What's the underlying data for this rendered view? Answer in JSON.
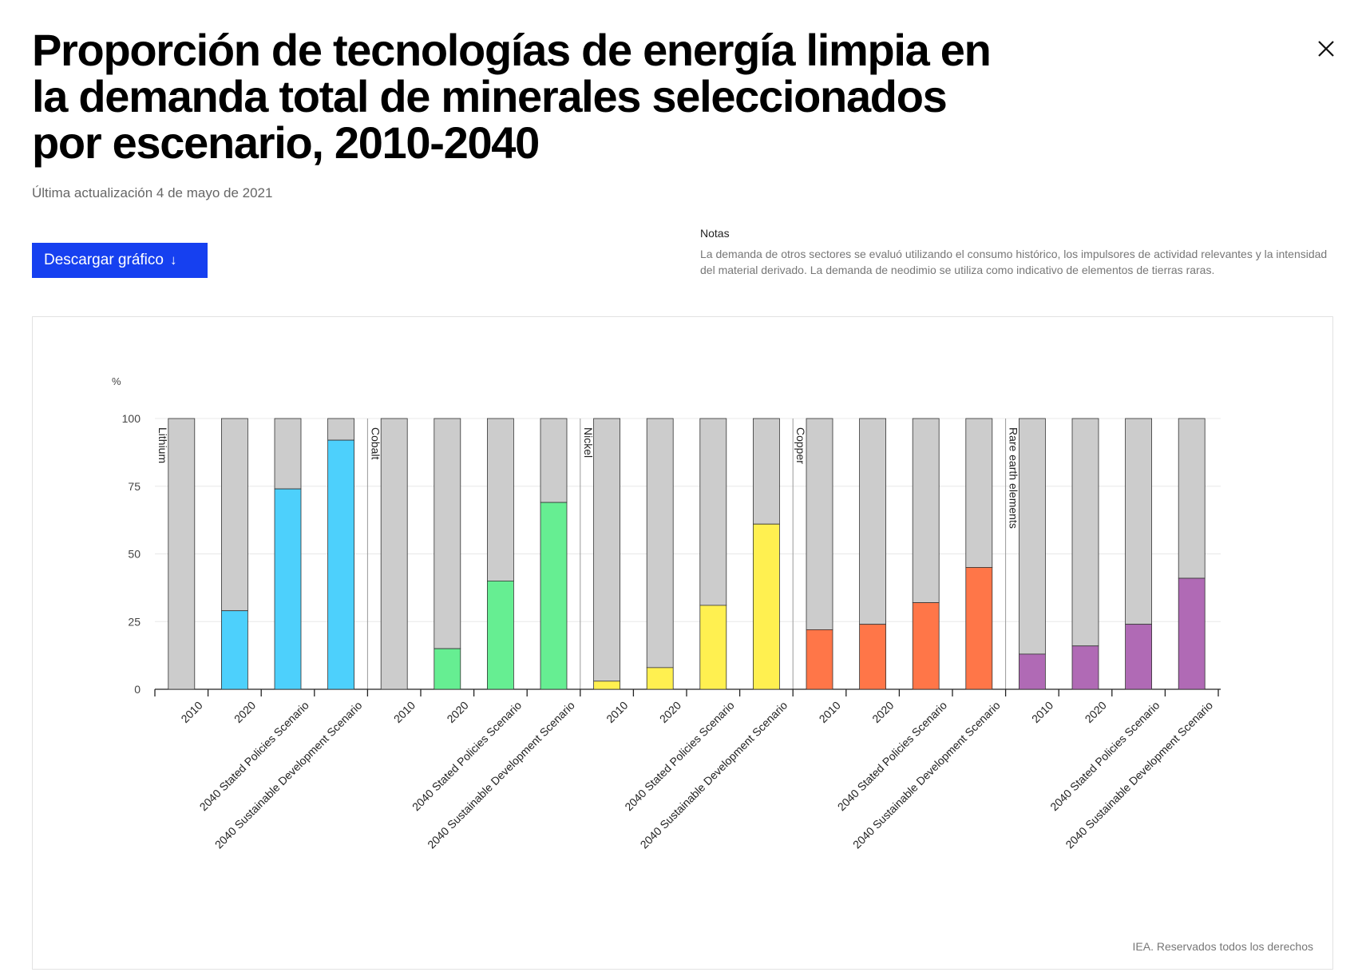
{
  "header": {
    "title": "Proporción de tecnologías de energía limpia en la demanda total de minerales seleccionados por escenario, 2010-2040",
    "updated": "Última actualización 4 de mayo de 2021",
    "download_label": "Descargar gráfico",
    "download_arrow": "↓",
    "close_icon": "close-icon"
  },
  "notes": {
    "title": "Notas",
    "text": "La demanda de otros sectores se evaluó utilizando el consumo histórico, los impulsores de actividad relevantes y la intensidad del material derivado. La demanda de neodimio se utiliza como indicativo de elementos de tierras raras."
  },
  "footer": {
    "copyright": "IEA. Reservados todos los derechos"
  },
  "chart_data": {
    "type": "bar",
    "stacked_to": 100,
    "title": "Proporción de tecnologías de energía limpia en la demanda total de minerales seleccionados por escenario, 2010-2040",
    "ylabel": "%",
    "xlabel": "",
    "ylim": [
      0,
      100
    ],
    "yticks": [
      0,
      25,
      50,
      75,
      100
    ],
    "grid": true,
    "categories": [
      "2010",
      "2020",
      "2040 Stated Policies Scenario",
      "2040 Sustainable Development Scenario"
    ],
    "remainder_color": "#cccccc",
    "groups": [
      {
        "name": "Lithium",
        "color": "#4dd0fc",
        "values": [
          0,
          29,
          74,
          92
        ]
      },
      {
        "name": "Cobalt",
        "color": "#66ee92",
        "values": [
          0,
          15,
          40,
          69
        ]
      },
      {
        "name": "Nickel",
        "color": "#fff050",
        "values": [
          3,
          8,
          31,
          61
        ]
      },
      {
        "name": "Copper",
        "color": "#ff7648",
        "values": [
          22,
          24,
          32,
          45
        ]
      },
      {
        "name": "Rare earth elements",
        "color": "#b06ab5",
        "values": [
          13,
          16,
          24,
          41
        ]
      }
    ]
  }
}
